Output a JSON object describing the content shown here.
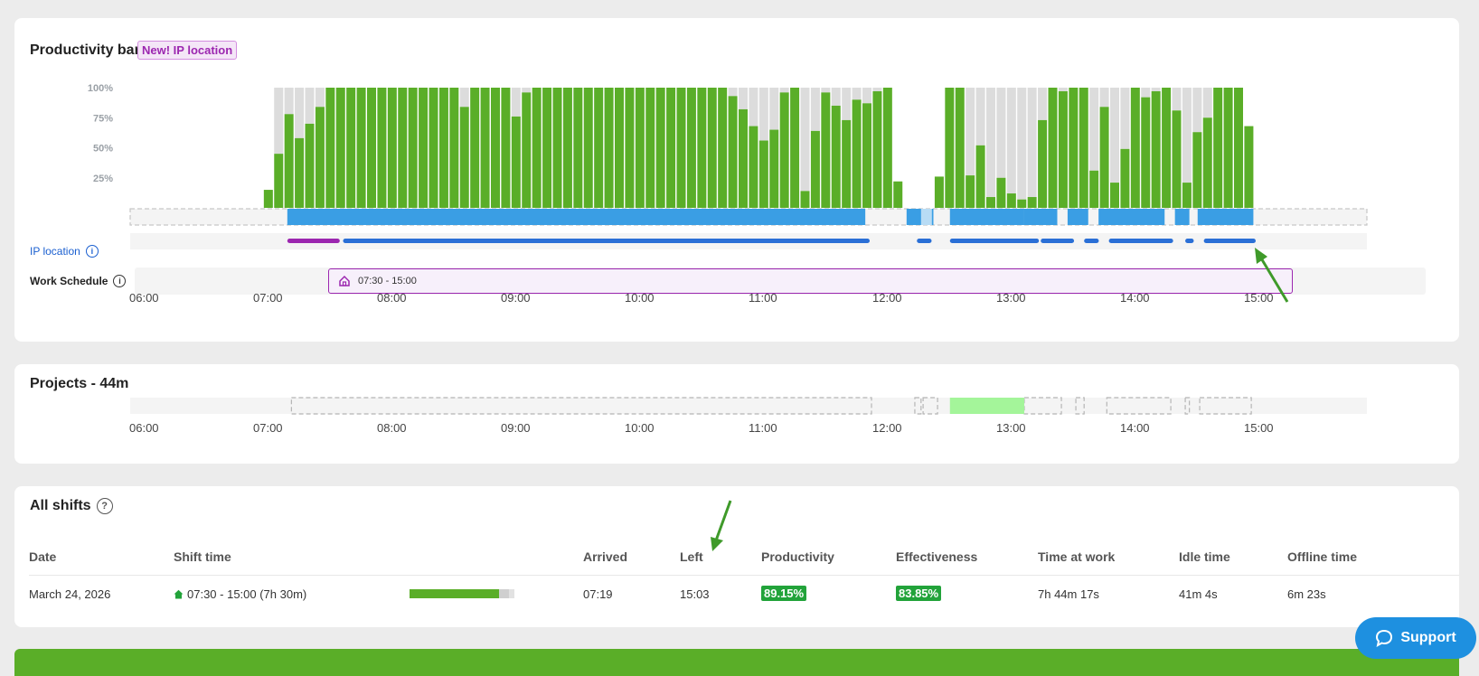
{
  "productivity_card": {
    "title": "Productivity bar",
    "badge": "New! IP location",
    "y_ticks": [
      "100%",
      "75%",
      "50%",
      "25%"
    ],
    "ip_location_label": "IP location",
    "work_schedule_label": "Work Schedule",
    "work_schedule_block": "07:30 - 15:00",
    "time_axis": [
      "06:00",
      "07:00",
      "08:00",
      "09:00",
      "10:00",
      "11:00",
      "12:00",
      "13:00",
      "14:00",
      "15:00"
    ]
  },
  "projects_card": {
    "title": "Projects - 44m",
    "time_axis": [
      "06:00",
      "07:00",
      "08:00",
      "09:00",
      "10:00",
      "11:00",
      "12:00",
      "13:00",
      "14:00",
      "15:00"
    ]
  },
  "shifts_card": {
    "title": "All shifts",
    "columns": {
      "date": "Date",
      "shift_time": "Shift time",
      "arrived": "Arrived",
      "left": "Left",
      "productivity": "Productivity",
      "effectiveness": "Effectiveness",
      "time_at_work": "Time at work",
      "idle_time": "Idle time",
      "offline_time": "Offline time"
    },
    "row": {
      "date": "March 24, 2026",
      "shift_time": "07:30 - 15:00 (7h 30m)",
      "arrived": "07:19",
      "left": "15:03",
      "productivity": "89.15%",
      "effectiveness": "83.85%",
      "time_at_work": "7h 44m 17s",
      "idle_time": "41m 4s",
      "offline_time": "6m 23s",
      "progress_fraction": 0.85
    }
  },
  "support_button": {
    "label": "Support"
  },
  "colors": {
    "productive": "#5aae28",
    "idle": "#dcdcdc",
    "online": "#3a9ee4",
    "ip_home": "#9c27b0",
    "ip_office": "#2a6fd6",
    "project": "#a4f59a"
  },
  "chart_data": {
    "type": "bar",
    "x_axis_ticks": [
      "06:00",
      "07:00",
      "08:00",
      "09:00",
      "10:00",
      "11:00",
      "12:00",
      "13:00",
      "14:00",
      "15:00"
    ],
    "y_axis_ticks": [
      "100%",
      "75%",
      "50%",
      "25%"
    ],
    "ylim": [
      0,
      100
    ],
    "bars": [
      {
        "t": "07:10",
        "active": 15,
        "total": 15
      },
      {
        "t": "07:15",
        "active": 45,
        "total": 100
      },
      {
        "t": "07:20",
        "active": 78,
        "total": 100
      },
      {
        "t": "07:25",
        "active": 58,
        "total": 100
      },
      {
        "t": "07:30",
        "active": 70,
        "total": 100
      },
      {
        "t": "07:35",
        "active": 84,
        "total": 100
      },
      {
        "t": "07:40",
        "active": 100,
        "total": 100
      },
      {
        "t": "07:45",
        "active": 100,
        "total": 100
      },
      {
        "t": "07:50",
        "active": 100,
        "total": 100
      },
      {
        "t": "07:55",
        "active": 100,
        "total": 100
      },
      {
        "t": "08:00",
        "active": 100,
        "total": 100
      },
      {
        "t": "08:05",
        "active": 100,
        "total": 100
      },
      {
        "t": "08:10",
        "active": 100,
        "total": 100
      },
      {
        "t": "08:15",
        "active": 100,
        "total": 100
      },
      {
        "t": "08:20",
        "active": 100,
        "total": 100
      },
      {
        "t": "08:25",
        "active": 100,
        "total": 100
      },
      {
        "t": "08:30",
        "active": 100,
        "total": 100
      },
      {
        "t": "08:35",
        "active": 100,
        "total": 100
      },
      {
        "t": "08:40",
        "active": 100,
        "total": 100
      },
      {
        "t": "08:45",
        "active": 84,
        "total": 100
      },
      {
        "t": "08:50",
        "active": 100,
        "total": 100
      },
      {
        "t": "08:55",
        "active": 100,
        "total": 100
      },
      {
        "t": "09:00",
        "active": 100,
        "total": 100
      },
      {
        "t": "09:05",
        "active": 100,
        "total": 100
      },
      {
        "t": "09:10",
        "active": 76,
        "total": 100
      },
      {
        "t": "09:15",
        "active": 96,
        "total": 100
      },
      {
        "t": "09:20",
        "active": 100,
        "total": 100
      },
      {
        "t": "09:25",
        "active": 100,
        "total": 100
      },
      {
        "t": "09:30",
        "active": 100,
        "total": 100
      },
      {
        "t": "09:35",
        "active": 100,
        "total": 100
      },
      {
        "t": "09:40",
        "active": 100,
        "total": 100
      },
      {
        "t": "09:45",
        "active": 100,
        "total": 100
      },
      {
        "t": "09:50",
        "active": 100,
        "total": 100
      },
      {
        "t": "09:55",
        "active": 100,
        "total": 100
      },
      {
        "t": "10:00",
        "active": 100,
        "total": 100
      },
      {
        "t": "10:05",
        "active": 100,
        "total": 100
      },
      {
        "t": "10:10",
        "active": 100,
        "total": 100
      },
      {
        "t": "10:15",
        "active": 100,
        "total": 100
      },
      {
        "t": "10:20",
        "active": 100,
        "total": 100
      },
      {
        "t": "10:25",
        "active": 100,
        "total": 100
      },
      {
        "t": "10:30",
        "active": 100,
        "total": 100
      },
      {
        "t": "10:35",
        "active": 100,
        "total": 100
      },
      {
        "t": "10:40",
        "active": 100,
        "total": 100
      },
      {
        "t": "10:45",
        "active": 100,
        "total": 100
      },
      {
        "t": "10:50",
        "active": 100,
        "total": 100
      },
      {
        "t": "10:55",
        "active": 93,
        "total": 100
      },
      {
        "t": "11:00",
        "active": 82,
        "total": 100
      },
      {
        "t": "11:05",
        "active": 68,
        "total": 100
      },
      {
        "t": "11:10",
        "active": 56,
        "total": 100
      },
      {
        "t": "11:15",
        "active": 65,
        "total": 100
      },
      {
        "t": "11:20",
        "active": 96,
        "total": 100
      },
      {
        "t": "11:25",
        "active": 100,
        "total": 100
      },
      {
        "t": "11:30",
        "active": 14,
        "total": 100
      },
      {
        "t": "11:35",
        "active": 64,
        "total": 100
      },
      {
        "t": "11:40",
        "active": 96,
        "total": 100
      },
      {
        "t": "11:45",
        "active": 85,
        "total": 100
      },
      {
        "t": "11:50",
        "active": 73,
        "total": 100
      },
      {
        "t": "11:55",
        "active": 90,
        "total": 100
      },
      {
        "t": "12:00",
        "active": 87,
        "total": 100
      },
      {
        "t": "12:05",
        "active": 97,
        "total": 100
      },
      {
        "t": "12:10",
        "active": 100,
        "total": 100
      },
      {
        "t": "12:15",
        "active": 22,
        "total": 22
      },
      {
        "t": "12:35",
        "active": 26,
        "total": 26
      },
      {
        "t": "12:40",
        "active": 100,
        "total": 100
      },
      {
        "t": "12:45",
        "active": 100,
        "total": 100
      },
      {
        "t": "12:50",
        "active": 27,
        "total": 100
      },
      {
        "t": "12:55",
        "active": 52,
        "total": 100
      },
      {
        "t": "13:00",
        "active": 9,
        "total": 100
      },
      {
        "t": "13:05",
        "active": 25,
        "total": 100
      },
      {
        "t": "13:10",
        "active": 12,
        "total": 100
      },
      {
        "t": "13:15",
        "active": 7,
        "total": 100
      },
      {
        "t": "13:20",
        "active": 9,
        "total": 100
      },
      {
        "t": "13:25",
        "active": 73,
        "total": 100
      },
      {
        "t": "13:30",
        "active": 100,
        "total": 100
      },
      {
        "t": "13:35",
        "active": 97,
        "total": 100
      },
      {
        "t": "13:40",
        "active": 100,
        "total": 100
      },
      {
        "t": "13:45",
        "active": 100,
        "total": 100
      },
      {
        "t": "13:50",
        "active": 31,
        "total": 100
      },
      {
        "t": "13:55",
        "active": 84,
        "total": 100
      },
      {
        "t": "14:00",
        "active": 21,
        "total": 100
      },
      {
        "t": "14:05",
        "active": 49,
        "total": 100
      },
      {
        "t": "14:10",
        "active": 100,
        "total": 100
      },
      {
        "t": "14:15",
        "active": 92,
        "total": 100
      },
      {
        "t": "14:20",
        "active": 97,
        "total": 100
      },
      {
        "t": "14:25",
        "active": 100,
        "total": 100
      },
      {
        "t": "14:30",
        "active": 81,
        "total": 100
      },
      {
        "t": "14:35",
        "active": 21,
        "total": 100
      },
      {
        "t": "14:40",
        "active": 63,
        "total": 100
      },
      {
        "t": "14:45",
        "active": 75,
        "total": 100
      },
      {
        "t": "14:50",
        "active": 100,
        "total": 100
      },
      {
        "t": "14:55",
        "active": 100,
        "total": 100
      },
      {
        "t": "15:00",
        "active": 100,
        "total": 100
      },
      {
        "t": "15:05",
        "active": 68,
        "total": 68
      }
    ]
  }
}
